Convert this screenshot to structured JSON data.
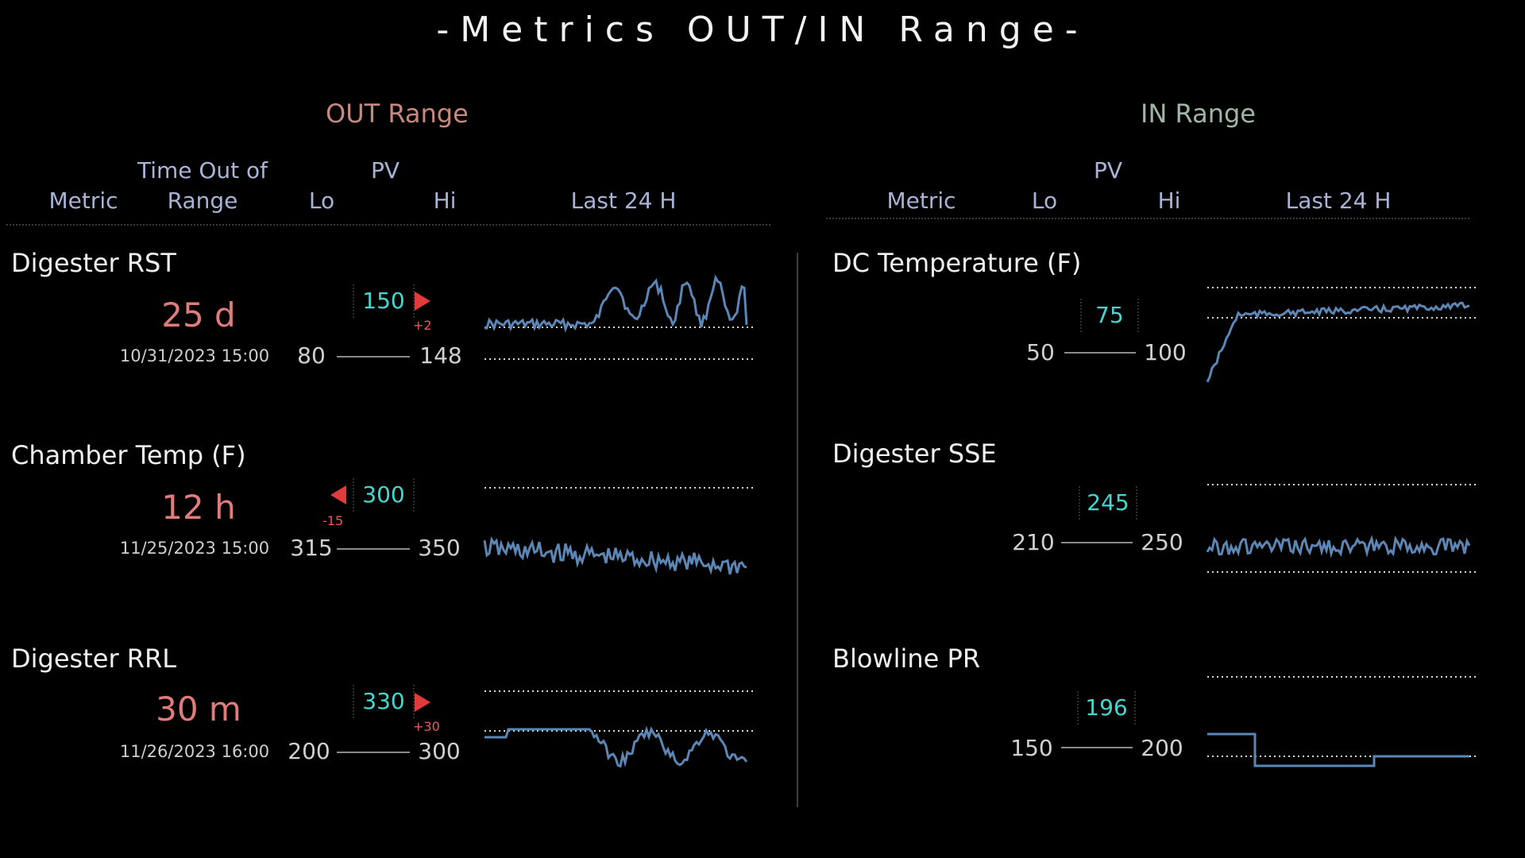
{
  "title": "-Metrics OUT/IN Range-",
  "out_section": {
    "title": "OUT Range",
    "headers": {
      "metric": "Metric",
      "time": "Time Out of\nRange",
      "pv": "PV",
      "lo": "Lo",
      "hi": "Hi",
      "last24": "Last 24 H"
    },
    "rows": [
      {
        "name": "Digester RST",
        "time": "25 d",
        "date": "10/31/2023 15:00",
        "lo": "80",
        "hi": "148",
        "pv": "150",
        "delta": "+2",
        "direction": "right"
      },
      {
        "name": "Chamber Temp (F)",
        "time": "12 h",
        "date": "11/25/2023 15:00",
        "lo": "315",
        "hi": "350",
        "pv": "300",
        "delta": "-15",
        "direction": "left"
      },
      {
        "name": "Digester RRL",
        "time": "30 m",
        "date": "11/26/2023 16:00",
        "lo": "200",
        "hi": "300",
        "pv": "330",
        "delta": "+30",
        "direction": "right"
      }
    ]
  },
  "in_section": {
    "title": "IN Range",
    "headers": {
      "metric": "Metric",
      "pv": "PV",
      "lo": "Lo",
      "hi": "Hi",
      "last24": "Last 24 H"
    },
    "rows": [
      {
        "name": "DC Temperature (F)",
        "lo": "50",
        "hi": "100",
        "pv": "75"
      },
      {
        "name": "Digester SSE",
        "lo": "210",
        "hi": "250",
        "pv": "245"
      },
      {
        "name": "Blowline PR",
        "lo": "150",
        "hi": "200",
        "pv": "196"
      }
    ]
  },
  "colors": {
    "spark": "#5b86b5",
    "time": "#e27b7b",
    "pv": "#45d6cf",
    "arrow": "#e23b3b"
  }
}
